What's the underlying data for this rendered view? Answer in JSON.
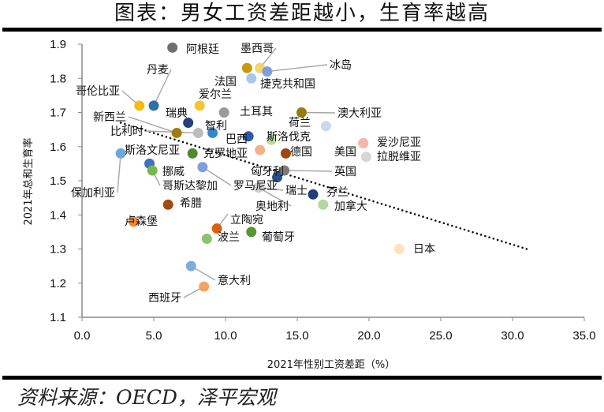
{
  "title": "图表：男女工资差距越小，生育率越高",
  "source": "资料来源：OECD，泽平宏观",
  "chart_data": {
    "type": "scatter",
    "title": "图表：男女工资差距越小，生育率越高",
    "xlabel": "2021年性别工资差距（%）",
    "ylabel": "2021年总和生育率",
    "xlim": [
      0,
      35
    ],
    "ylim": [
      1.1,
      1.9
    ],
    "xticks": [
      "0.0",
      "5.0",
      "10.0",
      "15.0",
      "20.0",
      "25.0",
      "30.0",
      "35.0"
    ],
    "yticks": [
      "1.1",
      "1.2",
      "1.3",
      "1.4",
      "1.5",
      "1.6",
      "1.7",
      "1.8",
      "1.9"
    ],
    "grid": false,
    "legend": "none",
    "trendline": {
      "type": "linear",
      "style": "dotted",
      "x": [
        2.7,
        31.0
      ],
      "y": [
        1.67,
        1.3
      ]
    },
    "points": [
      {
        "name": "阿根廷",
        "x": 6.3,
        "y": 1.89,
        "color": "#6f6f6f"
      },
      {
        "name": "墨西哥",
        "x": 12.4,
        "y": 1.83,
        "color": "#f5d36a"
      },
      {
        "name": "法国",
        "x": 11.5,
        "y": 1.83,
        "color": "#c9980e"
      },
      {
        "name": "捷克共和国",
        "x": 11.8,
        "y": 1.8,
        "color": "#a8c8ea"
      },
      {
        "name": "冰岛",
        "x": 12.9,
        "y": 1.82,
        "color": "#7f9fdc"
      },
      {
        "name": "丹麦",
        "x": 5.0,
        "y": 1.72,
        "color": "#2f6fa8"
      },
      {
        "name": "哥伦比亚",
        "x": 4.0,
        "y": 1.72,
        "color": "#f4bd14"
      },
      {
        "name": "爱尔兰",
        "x": 8.2,
        "y": 1.72,
        "color": "#f7c331"
      },
      {
        "name": "土耳其",
        "x": 9.9,
        "y": 1.7,
        "color": "#9a9a9a"
      },
      {
        "name": "澳大利亚",
        "x": 15.3,
        "y": 1.7,
        "color": "#9c7a10"
      },
      {
        "name": "荷兰",
        "x": 17.0,
        "y": 1.66,
        "color": "#c8d8ee"
      },
      {
        "name": "瑞典",
        "x": 7.4,
        "y": 1.67,
        "color": "#24427a"
      },
      {
        "name": "新西兰",
        "x": 6.6,
        "y": 1.64,
        "color": "#a07c0e"
      },
      {
        "name": "比利时",
        "x": 8.1,
        "y": 1.64,
        "color": "#bdbdbd"
      },
      {
        "name": "智利",
        "x": 9.1,
        "y": 1.64,
        "color": "#3a86cc"
      },
      {
        "name": "巴西",
        "x": 11.6,
        "y": 1.63,
        "color": "#2b5aa6"
      },
      {
        "name": "斯洛伐克",
        "x": 13.2,
        "y": 1.62,
        "color": "#b8dba0"
      },
      {
        "name": "克罗地亚",
        "x": 12.4,
        "y": 1.59,
        "color": "#f5b08a"
      },
      {
        "name": "德国",
        "x": 14.2,
        "y": 1.58,
        "color": "#9c4a12"
      },
      {
        "name": "美国",
        "x": 19.6,
        "y": 1.61,
        "color": "#f4b7ab"
      },
      {
        "name": "爱沙尼亚",
        "x": 19.6,
        "y": 1.61,
        "color": "#f4b7ab"
      },
      {
        "name": "拉脱维亚",
        "x": 19.8,
        "y": 1.57,
        "color": "#d6d6d6"
      },
      {
        "name": "英国",
        "x": 14.1,
        "y": 1.53,
        "color": "#7a7a7a"
      },
      {
        "name": "匈牙利",
        "x": 13.6,
        "y": 1.51,
        "color": "#24508c"
      },
      {
        "name": "斯洛文尼亚",
        "x": 7.7,
        "y": 1.58,
        "color": "#4f8a2e"
      },
      {
        "name": "保加利亚",
        "x": 2.7,
        "y": 1.58,
        "color": "#6fa8dc"
      },
      {
        "name": "挪威",
        "x": 4.7,
        "y": 1.55,
        "color": "#3d72c4"
      },
      {
        "name": "哥斯达黎加",
        "x": 4.9,
        "y": 1.53,
        "color": "#79b84a"
      },
      {
        "name": "罗马尼亚",
        "x": 8.4,
        "y": 1.54,
        "color": "#7b9fe0"
      },
      {
        "name": "瑞士",
        "x": 12.3,
        "y": 1.48,
        "color": "#cfcfcf"
      },
      {
        "name": "芬兰",
        "x": 16.1,
        "y": 1.46,
        "color": "#1f3f78"
      },
      {
        "name": "加拿大",
        "x": 16.8,
        "y": 1.43,
        "color": "#b5d6a0"
      },
      {
        "name": "奥地利",
        "x": 12.3,
        "y": 1.48,
        "color": "#cfcfcf"
      },
      {
        "name": "希腊",
        "x": 6.0,
        "y": 1.43,
        "color": "#a34a10"
      },
      {
        "name": "卢森堡",
        "x": 3.6,
        "y": 1.38,
        "color": "#ee8a3a"
      },
      {
        "name": "立陶宛",
        "x": 9.4,
        "y": 1.36,
        "color": "#d9620e"
      },
      {
        "name": "波兰",
        "x": 8.7,
        "y": 1.33,
        "color": "#8cc46a"
      },
      {
        "name": "葡萄牙",
        "x": 11.8,
        "y": 1.35,
        "color": "#5a9634"
      },
      {
        "name": "日本",
        "x": 22.1,
        "y": 1.3,
        "color": "#fde2bb"
      },
      {
        "name": "意大利",
        "x": 7.6,
        "y": 1.25,
        "color": "#7aaee0"
      },
      {
        "name": "西班牙",
        "x": 8.5,
        "y": 1.19,
        "color": "#f4a263"
      }
    ]
  }
}
